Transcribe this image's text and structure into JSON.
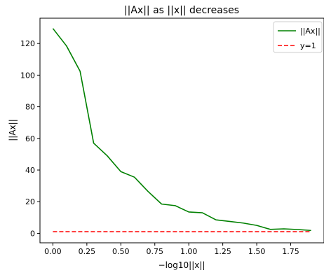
{
  "chart_data": {
    "type": "line",
    "title": "||Ax|| as ||x|| decreases",
    "xlabel": "−log10||x||",
    "ylabel": "||Ax||",
    "xlim": [
      -0.095,
      1.995
    ],
    "ylim": [
      -6.0,
      136.0
    ],
    "xticks": [
      0.0,
      0.25,
      0.5,
      0.75,
      1.0,
      1.25,
      1.5,
      1.75
    ],
    "xtick_labels": [
      "0.00",
      "0.25",
      "0.50",
      "0.75",
      "1.00",
      "1.25",
      "1.50",
      "1.75"
    ],
    "yticks": [
      0,
      20,
      40,
      60,
      80,
      100,
      120
    ],
    "ytick_labels": [
      "0",
      "20",
      "40",
      "60",
      "80",
      "100",
      "120"
    ],
    "grid": false,
    "legend": {
      "position": "top-right"
    },
    "series": [
      {
        "name": "||Ax||",
        "color": "#008000",
        "style": "solid",
        "x": [
          0.0,
          0.1,
          0.2,
          0.3,
          0.4,
          0.5,
          0.6,
          0.7,
          0.8,
          0.9,
          1.0,
          1.1,
          1.2,
          1.3,
          1.4,
          1.5,
          1.6,
          1.7,
          1.8,
          1.9
        ],
        "y": [
          129.5,
          118.5,
          102.5,
          57.0,
          49.0,
          39.0,
          35.5,
          26.5,
          18.5,
          17.5,
          13.5,
          13.0,
          8.5,
          7.5,
          6.5,
          5.0,
          2.5,
          2.8,
          2.4,
          1.8
        ]
      },
      {
        "name": "y=1",
        "color": "#ff0000",
        "style": "dashed",
        "x": [
          0.0,
          1.9
        ],
        "y": [
          1.0,
          1.0
        ]
      }
    ]
  }
}
